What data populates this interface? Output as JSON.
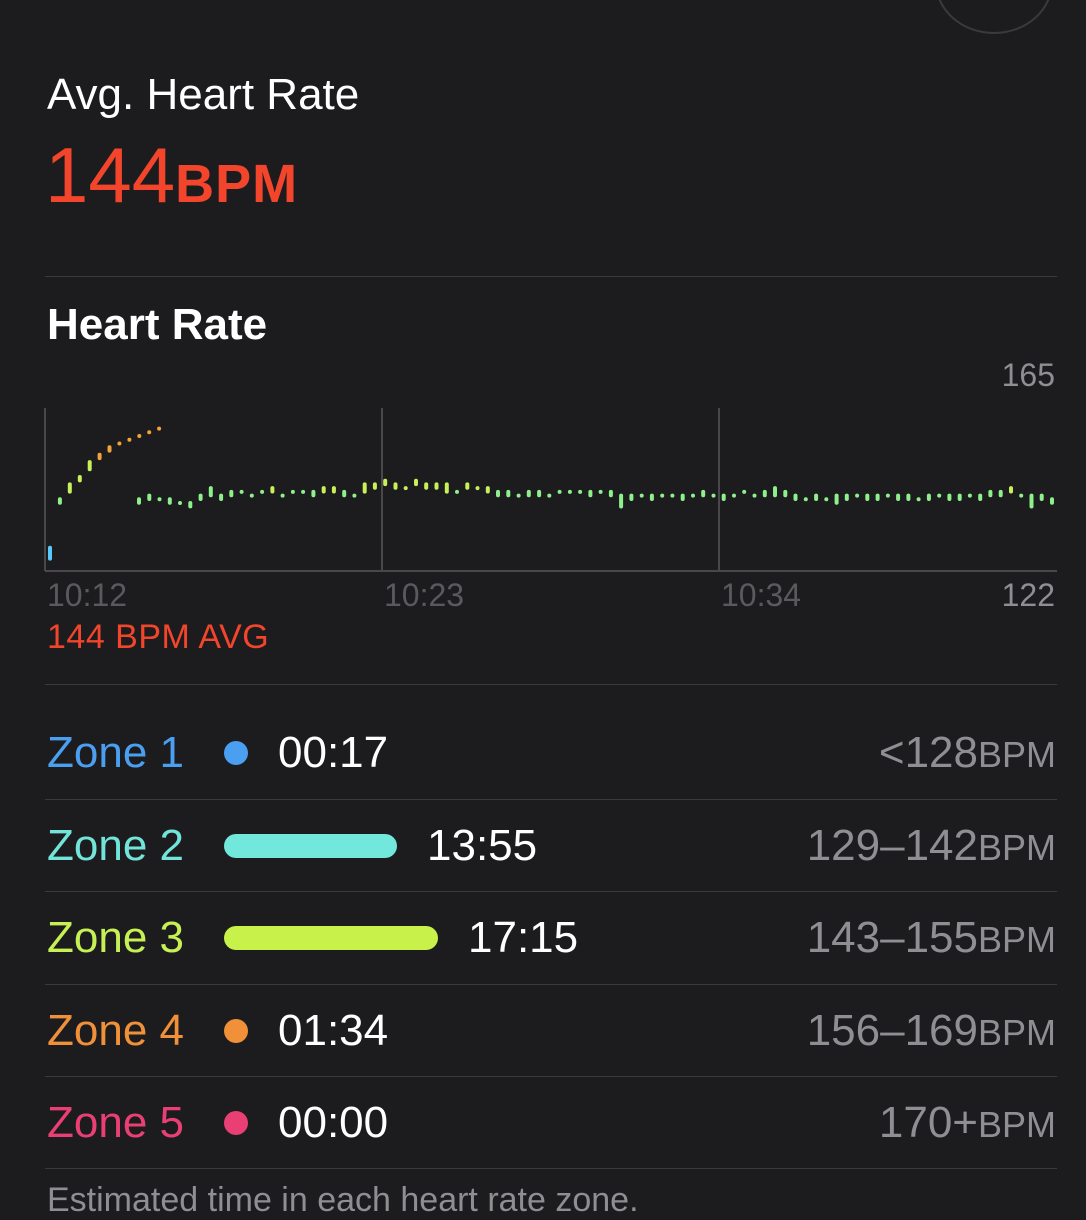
{
  "summary": {
    "label": "Avg. Heart Rate",
    "value": "144",
    "unit": "BPM"
  },
  "chart_section": {
    "title": "Heart Rate",
    "avg_caption": "144 BPM AVG"
  },
  "chart_data": {
    "type": "bar",
    "ylim": [
      122,
      165
    ],
    "y_top_label": "165",
    "y_bottom_label": "122",
    "x_tick_labels": [
      "10:12",
      "10:23",
      "10:34"
    ],
    "average": 144,
    "colors": {
      "zone1": "#5ac8fa",
      "zone2": "#7ee8d6",
      "zone3": "#8ef08a",
      "zone3_hi": "#c8f05a",
      "zone4": "#f2a33a"
    },
    "series": [
      {
        "values": [
          [
            124,
            128
          ],
          [
            139,
            141
          ],
          [
            142,
            145
          ],
          [
            145,
            147
          ],
          [
            148,
            151
          ],
          [
            151,
            153
          ],
          [
            153,
            155
          ],
          [
            155,
            156
          ],
          [
            156,
            157
          ],
          [
            157,
            158
          ],
          [
            158,
            159
          ],
          [
            159,
            160
          ],
          [
            139,
            141
          ],
          [
            140,
            142
          ],
          [
            140,
            141
          ],
          [
            139,
            141
          ],
          [
            139,
            140
          ],
          [
            138,
            140
          ],
          [
            140,
            142
          ],
          [
            141,
            144
          ],
          [
            140,
            142
          ],
          [
            141,
            143
          ],
          [
            142,
            143
          ],
          [
            141,
            142
          ],
          [
            142,
            143
          ],
          [
            142,
            144
          ],
          [
            141,
            142
          ],
          [
            142,
            143
          ],
          [
            142,
            143
          ],
          [
            141,
            143
          ],
          [
            142,
            144
          ],
          [
            142,
            144
          ],
          [
            141,
            143
          ],
          [
            141,
            142
          ],
          [
            142,
            145
          ],
          [
            143,
            145
          ],
          [
            144,
            146
          ],
          [
            143,
            145
          ],
          [
            143,
            144
          ],
          [
            144,
            146
          ],
          [
            143,
            145
          ],
          [
            143,
            145
          ],
          [
            142,
            145
          ],
          [
            142,
            143
          ],
          [
            143,
            145
          ],
          [
            143,
            144
          ],
          [
            142,
            144
          ],
          [
            141,
            143
          ],
          [
            141,
            143
          ],
          [
            141,
            142
          ],
          [
            141,
            143
          ],
          [
            141,
            143
          ],
          [
            141,
            142
          ],
          [
            142,
            143
          ],
          [
            142,
            143
          ],
          [
            142,
            143
          ],
          [
            141,
            143
          ],
          [
            142,
            143
          ],
          [
            141,
            143
          ],
          [
            138,
            142
          ],
          [
            140,
            142
          ],
          [
            141,
            142
          ],
          [
            140,
            142
          ],
          [
            141,
            142
          ],
          [
            141,
            142
          ],
          [
            140,
            142
          ],
          [
            141,
            142
          ],
          [
            141,
            143
          ],
          [
            141,
            142
          ],
          [
            140,
            142
          ],
          [
            141,
            142
          ],
          [
            142,
            143
          ],
          [
            141,
            142
          ],
          [
            141,
            143
          ],
          [
            141,
            144
          ],
          [
            141,
            143
          ],
          [
            140,
            142
          ],
          [
            140,
            141
          ],
          [
            140,
            142
          ],
          [
            140,
            141
          ],
          [
            139,
            142
          ],
          [
            140,
            142
          ],
          [
            141,
            142
          ],
          [
            140,
            142
          ],
          [
            140,
            142
          ],
          [
            141,
            142
          ],
          [
            140,
            142
          ],
          [
            140,
            142
          ],
          [
            140,
            141
          ],
          [
            140,
            142
          ],
          [
            141,
            142
          ],
          [
            140,
            142
          ],
          [
            140,
            142
          ],
          [
            141,
            142
          ],
          [
            140,
            142
          ],
          [
            141,
            143
          ],
          [
            141,
            143
          ],
          [
            142,
            144
          ],
          [
            141,
            142
          ],
          [
            138,
            142
          ],
          [
            140,
            142
          ],
          [
            139,
            141
          ]
        ]
      }
    ]
  },
  "zones": [
    {
      "name": "Zone 1",
      "time": "00:17",
      "range": "<128",
      "unit": "BPM",
      "color": "#4a9ff0",
      "bar_color": "#4a9ff0",
      "fraction": 0.009
    },
    {
      "name": "Zone 2",
      "time": "13:55",
      "range": "129–142",
      "unit": "BPM",
      "color": "#72e4da",
      "bar_color": "#72e8dd",
      "fraction": 0.424
    },
    {
      "name": "Zone 3",
      "time": "17:15",
      "range": "143–155",
      "unit": "BPM",
      "color": "#c6f054",
      "bar_color": "#c8f24a",
      "fraction": 0.525
    },
    {
      "name": "Zone 4",
      "time": "01:34",
      "range": "156–169",
      "unit": "BPM",
      "color": "#f0913a",
      "bar_color": "#f0913a",
      "fraction": 0.048
    },
    {
      "name": "Zone 5",
      "time": "00:00",
      "range": "170+",
      "unit": "BPM",
      "color": "#ea3f74",
      "bar_color": "#ea3f74",
      "fraction": 0.0
    }
  ],
  "footer": {
    "note": "Estimated time in each heart rate zone."
  }
}
